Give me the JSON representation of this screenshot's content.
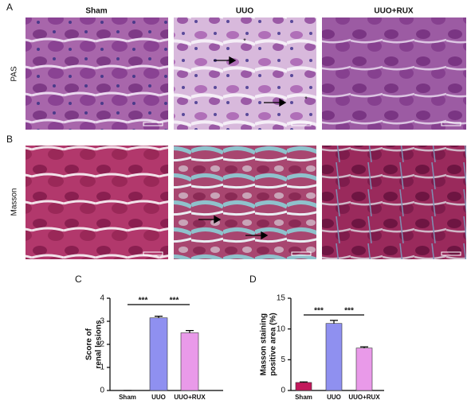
{
  "panel_labels": [
    "A",
    "B",
    "C",
    "D"
  ],
  "column_headers": [
    "Sham",
    "UUO",
    "UUO+RUX"
  ],
  "row_labels": [
    "PAS",
    "Masson"
  ],
  "image_annotations": [
    "*",
    "*"
  ],
  "chart_data": [
    {
      "type": "bar",
      "ylabel": [
        "Score of",
        "renal lesions"
      ],
      "categories": [
        "Sham",
        "UUO",
        "UUO+RUX"
      ],
      "values": [
        0,
        3.15,
        2.5
      ],
      "errors": [
        0,
        0.07,
        0.1
      ],
      "colors": [
        "#c2185b",
        "#8f90f0",
        "#e99ae9"
      ],
      "ylim": [
        0,
        4
      ],
      "yticks": [
        0,
        1,
        2,
        3,
        4
      ],
      "significance": [
        "***",
        "***"
      ]
    },
    {
      "type": "bar",
      "ylabel": [
        "Masson staining",
        "positive area (%)"
      ],
      "categories": [
        "Sham",
        "UUO",
        "UUO+RUX"
      ],
      "values": [
        1.3,
        10.9,
        6.9
      ],
      "errors": [
        0.1,
        0.5,
        0.2
      ],
      "colors": [
        "#c2185b",
        "#8f90f0",
        "#e99ae9"
      ],
      "ylim": [
        0,
        15
      ],
      "yticks": [
        0,
        5,
        10,
        15
      ],
      "significance": [
        "***",
        "***"
      ]
    }
  ]
}
